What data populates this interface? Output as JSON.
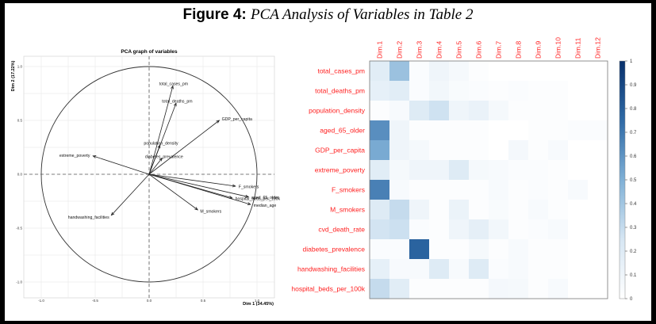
{
  "figure": {
    "label": "Figure 4:",
    "title": "PCA Analysis of Variables in Table 2"
  },
  "chart_data": [
    {
      "type": "scatter",
      "title": "PCA graph of variables",
      "xlabel": "Dim 1 (34.45%)",
      "ylabel": "Dim 2 (17.22%)",
      "xlim": [
        -1.0,
        1.0
      ],
      "ylim": [
        -1.0,
        1.0
      ],
      "x_ticks": [
        "-1.0",
        "-0.5",
        "0.0",
        "0.5",
        "1.0"
      ],
      "y_ticks": [
        "-1.0",
        "-0.5",
        "0.0",
        "0.5",
        "1.0"
      ],
      "grid": true,
      "unit_circle": true,
      "arrows": [
        {
          "name": "total_cases_pm",
          "x": 0.22,
          "y": 0.82
        },
        {
          "name": "total_deaths_pm",
          "x": 0.25,
          "y": 0.66
        },
        {
          "name": "GDP_per_capita",
          "x": 0.65,
          "y": 0.5
        },
        {
          "name": "population_density",
          "x": 0.1,
          "y": 0.27
        },
        {
          "name": "diabetes_prevalence",
          "x": 0.12,
          "y": 0.15
        },
        {
          "name": "extreme_poverty",
          "x": -0.52,
          "y": 0.17
        },
        {
          "name": "F_smokers",
          "x": 0.8,
          "y": -0.11
        },
        {
          "name": "aged_65_older",
          "x": 0.92,
          "y": -0.21
        },
        {
          "name": "hospital_beds_per_100k",
          "x": 0.77,
          "y": -0.22
        },
        {
          "name": "median_age",
          "x": 0.94,
          "y": -0.28
        },
        {
          "name": "M_smokers",
          "x": 0.45,
          "y": -0.33
        },
        {
          "name": "handwashing_facilities",
          "x": -0.35,
          "y": -0.38
        }
      ]
    },
    {
      "type": "heatmap",
      "columns": [
        "Dim.1",
        "Dim.2",
        "Dim.3",
        "Dim.4",
        "Dim.5",
        "Dim.6",
        "Dim.7",
        "Dim.8",
        "Dim.9",
        "Dim.10",
        "Dim.11",
        "Dim.12"
      ],
      "rows": [
        "total_cases_pm",
        "total_deaths_pm",
        "population_density",
        "aged_65_older",
        "GDP_per_capita",
        "extreme_poverty",
        "F_smokers",
        "M_smokers",
        "cvd_death_rate",
        "diabetes_prevalence",
        "handwashing_facilities",
        "hospital_beds_per_100k"
      ],
      "values": [
        [
          0.18,
          0.42,
          0.03,
          0.1,
          0.06,
          0.02,
          0.0,
          0.0,
          0.0,
          0.0,
          0.0,
          0.0
        ],
        [
          0.15,
          0.18,
          0.03,
          0.08,
          0.04,
          0.03,
          0.02,
          0.03,
          0.02,
          0.02,
          0.0,
          0.0
        ],
        [
          0.02,
          0.05,
          0.2,
          0.27,
          0.1,
          0.13,
          0.06,
          0.02,
          0.02,
          0.02,
          0.0,
          0.0
        ],
        [
          0.62,
          0.1,
          0.02,
          0.02,
          0.02,
          0.02,
          0.0,
          0.0,
          0.02,
          0.02,
          0.03,
          0.03
        ],
        [
          0.52,
          0.1,
          0.06,
          0.02,
          0.02,
          0.02,
          0.0,
          0.07,
          0.02,
          0.05,
          0.0,
          0.0
        ],
        [
          0.18,
          0.06,
          0.1,
          0.1,
          0.2,
          0.06,
          0.05,
          0.03,
          0.03,
          0.02,
          0.0,
          0.0
        ],
        [
          0.67,
          0.05,
          0.02,
          0.02,
          0.02,
          0.02,
          0.05,
          0.02,
          0.03,
          0.02,
          0.05,
          0.0
        ],
        [
          0.2,
          0.3,
          0.1,
          0.02,
          0.12,
          0.02,
          0.04,
          0.02,
          0.05,
          0.02,
          0.0,
          0.0
        ],
        [
          0.26,
          0.28,
          0.03,
          0.02,
          0.1,
          0.16,
          0.08,
          0.02,
          0.03,
          0.05,
          0.0,
          0.0
        ],
        [
          0.03,
          0.03,
          0.78,
          0.02,
          0.02,
          0.06,
          0.02,
          0.05,
          0.02,
          0.02,
          0.0,
          0.0
        ],
        [
          0.15,
          0.05,
          0.05,
          0.2,
          0.05,
          0.2,
          0.03,
          0.05,
          0.02,
          0.02,
          0.0,
          0.0
        ],
        [
          0.3,
          0.18,
          0.02,
          0.02,
          0.02,
          0.02,
          0.07,
          0.06,
          0.02,
          0.05,
          0.0,
          0.0
        ]
      ],
      "color_scale": {
        "min": 0,
        "max": 1,
        "low": "#ffffff",
        "high": "#08306b"
      },
      "colorbar_ticks": [
        "0",
        "0.1",
        "0.2",
        "0.3",
        "0.4",
        "0.5",
        "0.6",
        "0.7",
        "0.8",
        "0.9",
        "1"
      ],
      "label_color": "#ff2020"
    }
  ]
}
